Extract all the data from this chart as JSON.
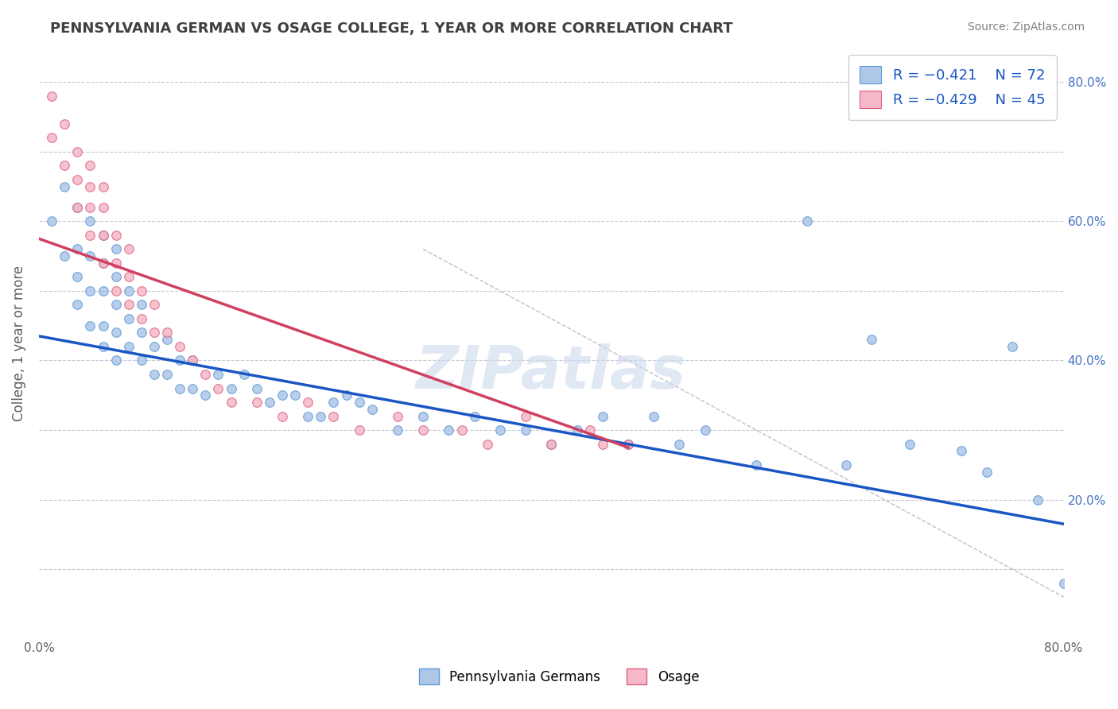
{
  "title": "PENNSYLVANIA GERMAN VS OSAGE COLLEGE, 1 YEAR OR MORE CORRELATION CHART",
  "source_text": "Source: ZipAtlas.com",
  "ylabel": "College, 1 year or more",
  "xmin": 0.0,
  "xmax": 0.8,
  "ymin": 0.0,
  "ymax": 0.85,
  "xticks": [
    0.0,
    0.1,
    0.2,
    0.3,
    0.4,
    0.5,
    0.6,
    0.7,
    0.8
  ],
  "yticks": [
    0.0,
    0.1,
    0.2,
    0.3,
    0.4,
    0.5,
    0.6,
    0.7,
    0.8
  ],
  "xticklabels": [
    "0.0%",
    "",
    "",
    "",
    "",
    "",
    "",
    "",
    "80.0%"
  ],
  "left_yticklabels": [
    "",
    "",
    "",
    "",
    "",
    "",
    "",
    "",
    ""
  ],
  "right_yticklabels": [
    "",
    "",
    "20.0%",
    "",
    "40.0%",
    "",
    "60.0%",
    "",
    "80.0%"
  ],
  "blue_scatter_x": [
    0.01,
    0.02,
    0.02,
    0.03,
    0.03,
    0.03,
    0.03,
    0.04,
    0.04,
    0.04,
    0.04,
    0.05,
    0.05,
    0.05,
    0.05,
    0.05,
    0.06,
    0.06,
    0.06,
    0.06,
    0.06,
    0.07,
    0.07,
    0.07,
    0.08,
    0.08,
    0.08,
    0.09,
    0.09,
    0.1,
    0.1,
    0.11,
    0.11,
    0.12,
    0.12,
    0.13,
    0.14,
    0.15,
    0.16,
    0.17,
    0.18,
    0.19,
    0.2,
    0.21,
    0.22,
    0.23,
    0.24,
    0.25,
    0.26,
    0.28,
    0.3,
    0.32,
    0.34,
    0.36,
    0.38,
    0.4,
    0.42,
    0.44,
    0.46,
    0.48,
    0.5,
    0.52,
    0.56,
    0.6,
    0.63,
    0.65,
    0.68,
    0.72,
    0.74,
    0.76,
    0.78,
    0.8
  ],
  "blue_scatter_y": [
    0.6,
    0.55,
    0.65,
    0.48,
    0.52,
    0.56,
    0.62,
    0.45,
    0.5,
    0.55,
    0.6,
    0.42,
    0.45,
    0.5,
    0.54,
    0.58,
    0.4,
    0.44,
    0.48,
    0.52,
    0.56,
    0.42,
    0.46,
    0.5,
    0.4,
    0.44,
    0.48,
    0.38,
    0.42,
    0.38,
    0.43,
    0.36,
    0.4,
    0.36,
    0.4,
    0.35,
    0.38,
    0.36,
    0.38,
    0.36,
    0.34,
    0.35,
    0.35,
    0.32,
    0.32,
    0.34,
    0.35,
    0.34,
    0.33,
    0.3,
    0.32,
    0.3,
    0.32,
    0.3,
    0.3,
    0.28,
    0.3,
    0.32,
    0.28,
    0.32,
    0.28,
    0.3,
    0.25,
    0.6,
    0.25,
    0.43,
    0.28,
    0.27,
    0.24,
    0.42,
    0.2,
    0.08
  ],
  "pink_scatter_x": [
    0.01,
    0.01,
    0.02,
    0.02,
    0.03,
    0.03,
    0.03,
    0.04,
    0.04,
    0.04,
    0.04,
    0.05,
    0.05,
    0.05,
    0.05,
    0.06,
    0.06,
    0.06,
    0.07,
    0.07,
    0.07,
    0.08,
    0.08,
    0.09,
    0.09,
    0.1,
    0.11,
    0.12,
    0.13,
    0.14,
    0.15,
    0.17,
    0.19,
    0.21,
    0.23,
    0.25,
    0.28,
    0.3,
    0.33,
    0.35,
    0.38,
    0.4,
    0.43,
    0.44,
    0.46
  ],
  "pink_scatter_y": [
    0.72,
    0.78,
    0.68,
    0.74,
    0.62,
    0.66,
    0.7,
    0.58,
    0.62,
    0.65,
    0.68,
    0.54,
    0.58,
    0.62,
    0.65,
    0.5,
    0.54,
    0.58,
    0.48,
    0.52,
    0.56,
    0.46,
    0.5,
    0.44,
    0.48,
    0.44,
    0.42,
    0.4,
    0.38,
    0.36,
    0.34,
    0.34,
    0.32,
    0.34,
    0.32,
    0.3,
    0.32,
    0.3,
    0.3,
    0.28,
    0.32,
    0.28,
    0.3,
    0.28,
    0.28
  ],
  "blue_line_x": [
    0.0,
    0.8
  ],
  "blue_line_y": [
    0.435,
    0.165
  ],
  "pink_line_x": [
    0.0,
    0.46
  ],
  "pink_line_y": [
    0.575,
    0.275
  ],
  "dashed_line_x": [
    0.3,
    0.8
  ],
  "dashed_line_y": [
    0.56,
    0.06
  ],
  "blue_color": "#aec6e8",
  "blue_edge_color": "#5b9bd5",
  "pink_color": "#f4b8c8",
  "pink_edge_color": "#e06080",
  "blue_line_color": "#1a56c4",
  "pink_line_color": "#d04060",
  "dashed_line_color": "#c0c0c0",
  "legend_r_blue": "R = −0.421",
  "legend_n_blue": "N = 72",
  "legend_r_pink": "R = −0.429",
  "legend_n_pink": "N = 45",
  "legend_text_color": "#1a56c4",
  "watermark_text": "ZIPatlas",
  "background_color": "#ffffff",
  "grid_color": "#c8c8d8",
  "title_color": "#404040",
  "right_axis_color": "#4472c4",
  "title_fontsize": 13,
  "marker_size": 70
}
